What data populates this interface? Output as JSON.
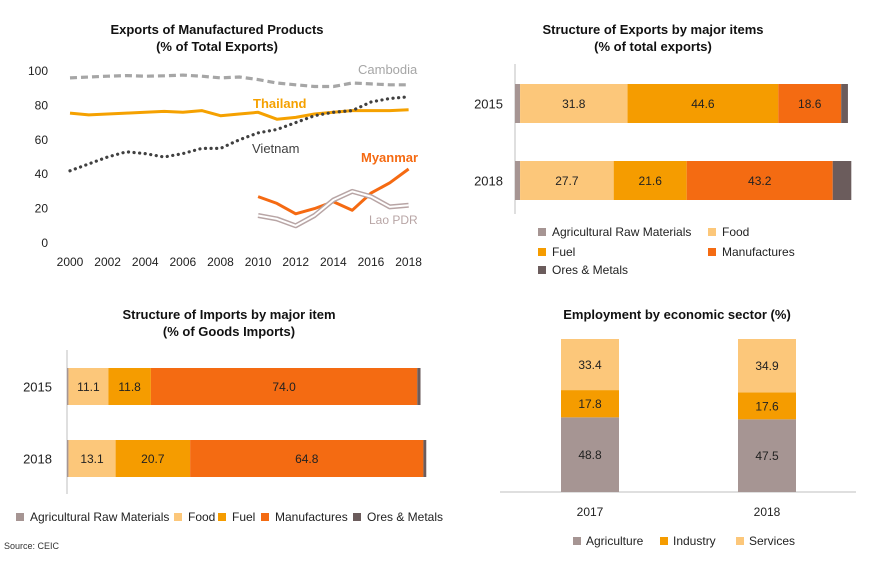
{
  "source": "Source: CEIC",
  "chart_data": [
    {
      "id": "exports_mfg",
      "type": "line",
      "title": [
        "Exports of Manufactured Products",
        "(% of Total Exports)"
      ],
      "x": [
        2000,
        2001,
        2002,
        2003,
        2004,
        2005,
        2006,
        2007,
        2008,
        2009,
        2010,
        2011,
        2012,
        2013,
        2014,
        2015,
        2016,
        2017,
        2018
      ],
      "xticks": [
        2000,
        2002,
        2004,
        2006,
        2008,
        2010,
        2012,
        2014,
        2016,
        2018
      ],
      "yticks": [
        0,
        20,
        40,
        60,
        80,
        100
      ],
      "ylim": [
        0,
        100
      ],
      "xlim": [
        2000,
        2018.5
      ],
      "series": [
        {
          "name": "Cambodia",
          "color": "#A6A6A6",
          "style": "dashed",
          "values": [
            96,
            96.5,
            97,
            97.3,
            97,
            97.2,
            97.6,
            97,
            96,
            96.5,
            95,
            93,
            92,
            91,
            91,
            93,
            92.5,
            92,
            92
          ]
        },
        {
          "name": "Thailand",
          "color": "#F5A100",
          "style": "solid",
          "values": [
            75.5,
            74.5,
            75,
            75.5,
            76,
            76.5,
            76,
            77,
            74,
            75,
            76,
            72,
            73,
            75,
            76,
            77,
            77,
            77,
            77.5
          ]
        },
        {
          "name": "Vietnam",
          "color": "#404040",
          "style": "dotted",
          "values": [
            42,
            46,
            50,
            53,
            52,
            50,
            52,
            55,
            55,
            60,
            64,
            66,
            70,
            74,
            76,
            77,
            82,
            84,
            85
          ]
        },
        {
          "name": "Myanmar",
          "color": "#F56A12",
          "style": "solid",
          "values": [
            null,
            null,
            null,
            null,
            null,
            null,
            null,
            null,
            null,
            null,
            27,
            23,
            17,
            20,
            24,
            19,
            29,
            35,
            43
          ]
        },
        {
          "name": "Lao PDR",
          "color": "#B8A5A5",
          "style": "double",
          "values": [
            null,
            null,
            null,
            null,
            null,
            null,
            null,
            null,
            null,
            null,
            16,
            14,
            10,
            16,
            25,
            30,
            27,
            21,
            22
          ]
        }
      ]
    },
    {
      "id": "exports_structure",
      "type": "bar",
      "title": [
        "Structure of Exports by major items",
        "(% of total exports)"
      ],
      "categories": [
        "2015",
        "2018"
      ],
      "series": [
        {
          "name": "Agricultural Raw Materials",
          "color": "#A69593",
          "values": [
            1.5,
            1.5
          ]
        },
        {
          "name": "Food",
          "color": "#FCC77A",
          "values": [
            31.8,
            27.7
          ]
        },
        {
          "name": "Fuel",
          "color": "#F59C00",
          "values": [
            44.6,
            21.6
          ]
        },
        {
          "name": "Manufactures",
          "color": "#F46B12",
          "values": [
            18.6,
            43.2
          ]
        },
        {
          "name": "Ores & Metals",
          "color": "#6B5C5C",
          "values": [
            2.0,
            5.5
          ]
        }
      ],
      "data_labels": [
        [
          "",
          "31.8",
          "44.6",
          "18.6",
          ""
        ],
        [
          "",
          "27.7",
          "21.6",
          "43.2",
          ""
        ]
      ]
    },
    {
      "id": "imports_structure",
      "type": "bar",
      "title": [
        "Structure of Imports by major item",
        "(% of Goods Imports)"
      ],
      "categories": [
        "2015",
        "2018"
      ],
      "series": [
        {
          "name": "Agricultural Raw Materials",
          "color": "#A69593",
          "values": [
            0.4,
            0.4
          ]
        },
        {
          "name": "Food",
          "color": "#FCC77A",
          "values": [
            11.1,
            13.1
          ]
        },
        {
          "name": "Fuel",
          "color": "#F59C00",
          "values": [
            11.8,
            20.7
          ]
        },
        {
          "name": "Manufactures",
          "color": "#F46B12",
          "values": [
            74.0,
            64.8
          ]
        },
        {
          "name": "Ores & Metals",
          "color": "#6B5C5C",
          "values": [
            0.9,
            0.8
          ]
        }
      ],
      "data_labels": [
        [
          "",
          "11.1",
          "11.8",
          "74.0",
          ""
        ],
        [
          "",
          "13.1",
          "20.7",
          "64.8",
          ""
        ]
      ]
    },
    {
      "id": "employment",
      "type": "bar",
      "title": [
        "Employment by economic sector (%)"
      ],
      "categories": [
        "2017",
        "2018"
      ],
      "series": [
        {
          "name": "Agriculture",
          "color": "#A69593",
          "values": [
            48.8,
            47.5
          ]
        },
        {
          "name": "Industry",
          "color": "#F59C00",
          "values": [
            17.8,
            17.6
          ]
        },
        {
          "name": "Services",
          "color": "#FCC77A",
          "values": [
            33.4,
            34.9
          ]
        }
      ]
    }
  ]
}
